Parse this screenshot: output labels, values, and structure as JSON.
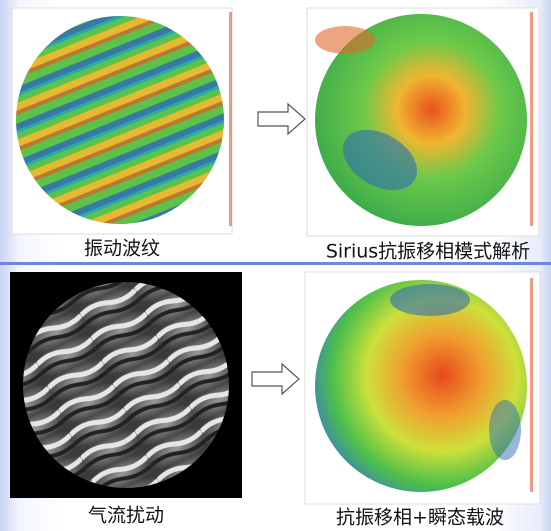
{
  "panels": [
    {
      "caption": "振动波纹"
    },
    {
      "caption": "Sirius抗振移相模式解析"
    },
    {
      "caption": "气流扰动"
    },
    {
      "caption": "抗振移相+瞬态载波"
    }
  ]
}
